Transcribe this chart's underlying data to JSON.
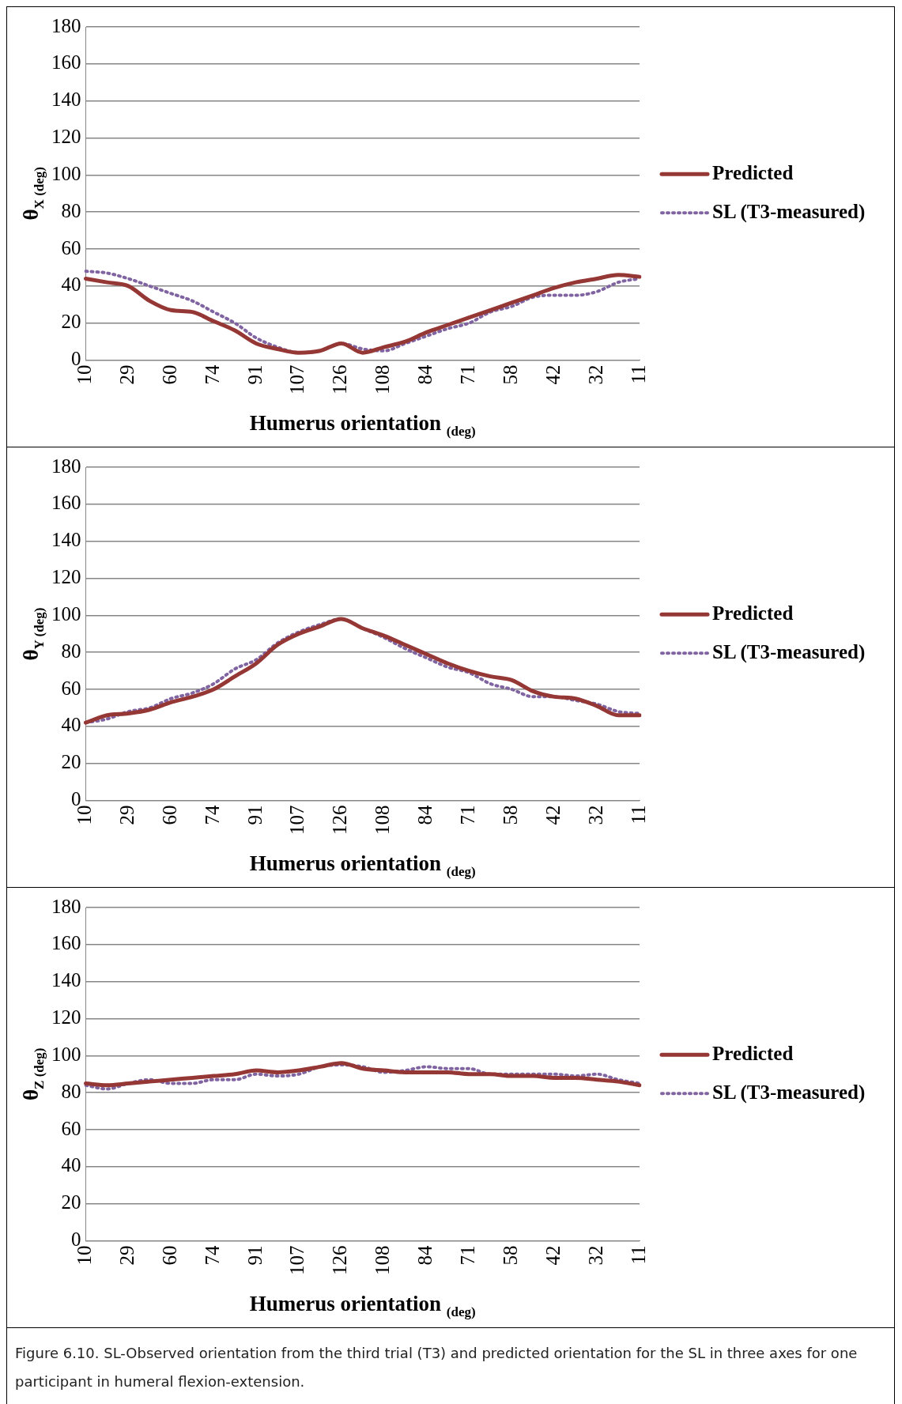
{
  "chart_data": [
    {
      "type": "line",
      "ylabel": "θ$_{X (deg)}$",
      "xlabel": "Humerus orientation $_{(deg)}$",
      "categories": [
        "10",
        null,
        "29",
        null,
        "60",
        null,
        "74",
        null,
        "91",
        null,
        "107",
        null,
        "126",
        null,
        "108",
        null,
        "84",
        null,
        "71",
        null,
        "58",
        null,
        "42",
        null,
        "32",
        null,
        "11"
      ],
      "ylim": [
        0,
        180
      ],
      "yticks": [
        0,
        20,
        40,
        60,
        80,
        100,
        120,
        140,
        160,
        180
      ],
      "grid": "y",
      "legend": "right",
      "marker": "none",
      "series": [
        {
          "name": "Predicted",
          "color": "#953735",
          "line_style": "solid",
          "values": [
            44,
            42,
            40,
            32,
            27,
            26,
            21,
            16,
            9,
            6,
            4,
            5,
            9,
            4,
            7,
            10,
            15,
            19,
            23,
            27,
            31,
            35,
            39,
            42,
            44,
            46,
            45
          ]
        },
        {
          "name": "SL (T3-measured)",
          "color": "#8064a2",
          "line_style": "dotted",
          "values": [
            48,
            47,
            44,
            40,
            36,
            32,
            26,
            20,
            12,
            7,
            4,
            5,
            9,
            6,
            5,
            9,
            13,
            17,
            20,
            26,
            29,
            34,
            35,
            35,
            37,
            42,
            44
          ]
        }
      ]
    },
    {
      "type": "line",
      "ylabel": "θ$_{Y (deg)}$",
      "xlabel": "Humerus orientation $_{(deg)}$",
      "categories": [
        "10",
        null,
        "29",
        null,
        "60",
        null,
        "74",
        null,
        "91",
        null,
        "107",
        null,
        "126",
        null,
        "108",
        null,
        "84",
        null,
        "71",
        null,
        "58",
        null,
        "42",
        null,
        "32",
        null,
        "11"
      ],
      "ylim": [
        0,
        180
      ],
      "yticks": [
        0,
        20,
        40,
        60,
        80,
        100,
        120,
        140,
        160,
        180
      ],
      "grid": "y",
      "legend": "right",
      "marker": "none",
      "series": [
        {
          "name": "Predicted",
          "color": "#953735",
          "line_style": "solid",
          "values": [
            42,
            46,
            47,
            49,
            53,
            56,
            60,
            67,
            74,
            84,
            90,
            94,
            98,
            93,
            89,
            84,
            79,
            74,
            70,
            67,
            65,
            59,
            56,
            55,
            51,
            46,
            46
          ]
        },
        {
          "name": "SL (T3-measured)",
          "color": "#8064a2",
          "line_style": "dotted",
          "values": [
            42,
            44,
            48,
            50,
            55,
            58,
            63,
            71,
            76,
            85,
            91,
            95,
            98,
            93,
            88,
            82,
            77,
            72,
            69,
            63,
            60,
            56,
            56,
            54,
            52,
            48,
            47
          ]
        }
      ]
    },
    {
      "type": "line",
      "ylabel": "θ$_{Z (deg)}$",
      "xlabel": "Humerus orientation $_{(deg)}$",
      "categories": [
        "10",
        null,
        "29",
        null,
        "60",
        null,
        "74",
        null,
        "91",
        null,
        "107",
        null,
        "126",
        null,
        "108",
        null,
        "84",
        null,
        "71",
        null,
        "58",
        null,
        "42",
        null,
        "32",
        null,
        "11"
      ],
      "ylim": [
        0,
        180
      ],
      "yticks": [
        0,
        20,
        40,
        60,
        80,
        100,
        120,
        140,
        160,
        180
      ],
      "grid": "y",
      "legend": "right",
      "marker": "none",
      "annotations": [
        "Figure 6.10. SL-Observed orientation from the third trial (T3) and predicted orientation for the SL in three axes for one participant in humeral flexion-extension."
      ],
      "series": [
        {
          "name": "Predicted",
          "color": "#953735",
          "line_style": "solid",
          "values": [
            85,
            84,
            85,
            86,
            87,
            88,
            89,
            90,
            92,
            91,
            92,
            94,
            96,
            93,
            92,
            91,
            91,
            91,
            90,
            90,
            89,
            89,
            88,
            88,
            87,
            86,
            84
          ]
        },
        {
          "name": "SL (T3-measured)",
          "color": "#8064a2",
          "line_style": "dotted",
          "values": [
            84,
            82,
            85,
            87,
            85,
            85,
            87,
            87,
            90,
            89,
            90,
            94,
            95,
            94,
            91,
            92,
            94,
            93,
            93,
            90,
            90,
            90,
            90,
            89,
            90,
            87,
            85
          ]
        }
      ]
    }
  ]
}
